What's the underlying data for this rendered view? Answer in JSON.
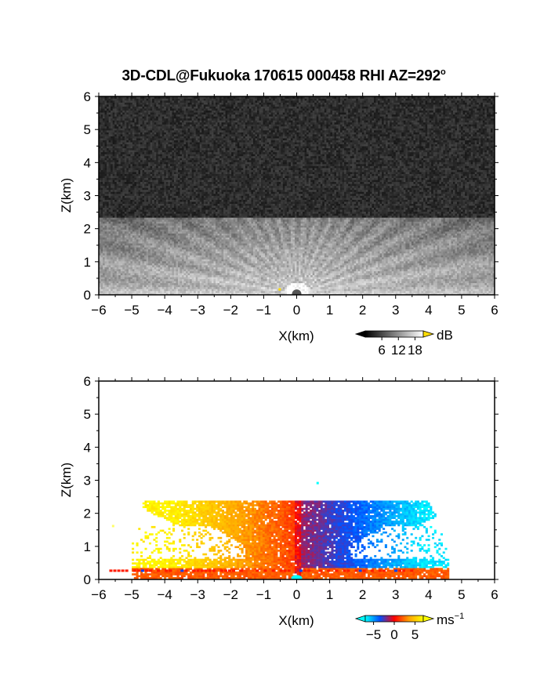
{
  "title": {
    "text": "3D-CDL@Fukuoka 170615 000458 RHI AZ=292",
    "degree": "o"
  },
  "chart_data": [
    {
      "type": "heatmap",
      "name": "backscatter-rhi",
      "xlabel": "X(km)",
      "ylabel": "Z(km)",
      "xlim": [
        -6,
        6
      ],
      "ylim": [
        0,
        6
      ],
      "xticks": [
        "-6",
        "-5",
        "-4",
        "-3",
        "-2",
        "-1",
        "0",
        "1",
        "2",
        "3",
        "4",
        "5",
        "6"
      ],
      "yticks": [
        "0",
        "1",
        "2",
        "3",
        "4",
        "5",
        "6"
      ],
      "colorbar": {
        "unit": "dB",
        "ticks": [
          "6",
          "12",
          "18"
        ],
        "tick_values": [
          6,
          12,
          18
        ],
        "range": [
          0,
          21
        ],
        "colors": [
          "#000000",
          "#ffffff"
        ],
        "over_color": "#ffdd00"
      },
      "layer_top_km": 2.3
    },
    {
      "type": "heatmap",
      "name": "doppler-velocity-rhi",
      "xlabel": "X(km)",
      "ylabel": "Z(km)",
      "xlim": [
        -6,
        6
      ],
      "ylim": [
        0,
        6
      ],
      "xticks": [
        "-6",
        "-5",
        "-4",
        "-3",
        "-2",
        "-1",
        "0",
        "1",
        "2",
        "3",
        "4",
        "5",
        "6"
      ],
      "yticks": [
        "0",
        "1",
        "2",
        "3",
        "4",
        "5",
        "6"
      ],
      "colorbar": {
        "unit": "ms",
        "unit_exponent": "−1",
        "ticks": [
          "−5",
          "0",
          "5"
        ],
        "tick_values": [
          -5,
          0,
          5
        ],
        "range": [
          -7,
          7
        ],
        "colors": [
          "#00ffff",
          "#0050ff",
          "#ff0000",
          "#ffa000",
          "#ffff00"
        ]
      },
      "layer_top_km": 2.3
    }
  ]
}
